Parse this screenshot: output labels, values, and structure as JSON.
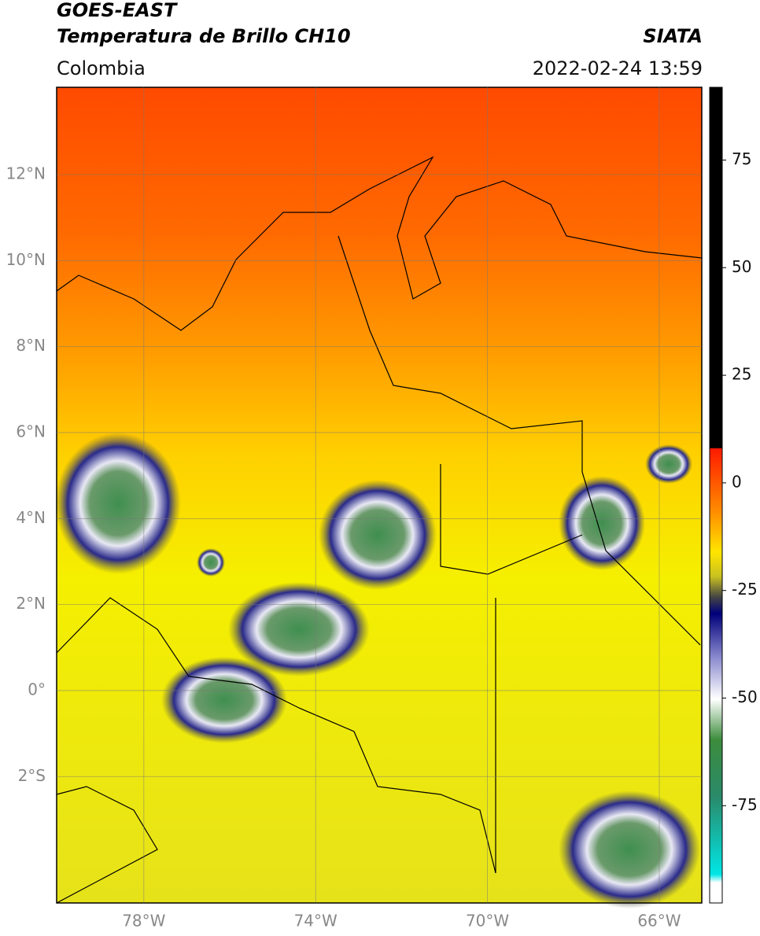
{
  "header": {
    "title": "GOES-EAST",
    "subtitle": "Temperatura de Brillo CH10",
    "source": "SIATA",
    "region": "Colombia",
    "datetime": "2022-02-24 13:59"
  },
  "map": {
    "xlim": [
      -80.03,
      -65.01
    ],
    "ylim": [
      -4.94,
      14.03
    ],
    "xticks": [
      {
        "value": -78,
        "label": "78°W"
      },
      {
        "value": -74,
        "label": "74°W"
      },
      {
        "value": -70,
        "label": "70°W"
      },
      {
        "value": -66,
        "label": "66°W"
      }
    ],
    "yticks": [
      {
        "value": 12,
        "label": "12°N"
      },
      {
        "value": 10,
        "label": "10°N"
      },
      {
        "value": 8,
        "label": "8°N"
      },
      {
        "value": 6,
        "label": "6°N"
      },
      {
        "value": 4,
        "label": "4°N"
      },
      {
        "value": 2,
        "label": "2°N"
      },
      {
        "value": 0,
        "label": "0°"
      },
      {
        "value": -2,
        "label": "2°S"
      }
    ],
    "grid": true
  },
  "colorbar": {
    "lim": [
      -97.6,
      91.9
    ],
    "ticks": [
      75,
      50,
      25,
      0,
      -25,
      -50,
      -75
    ]
  }
}
